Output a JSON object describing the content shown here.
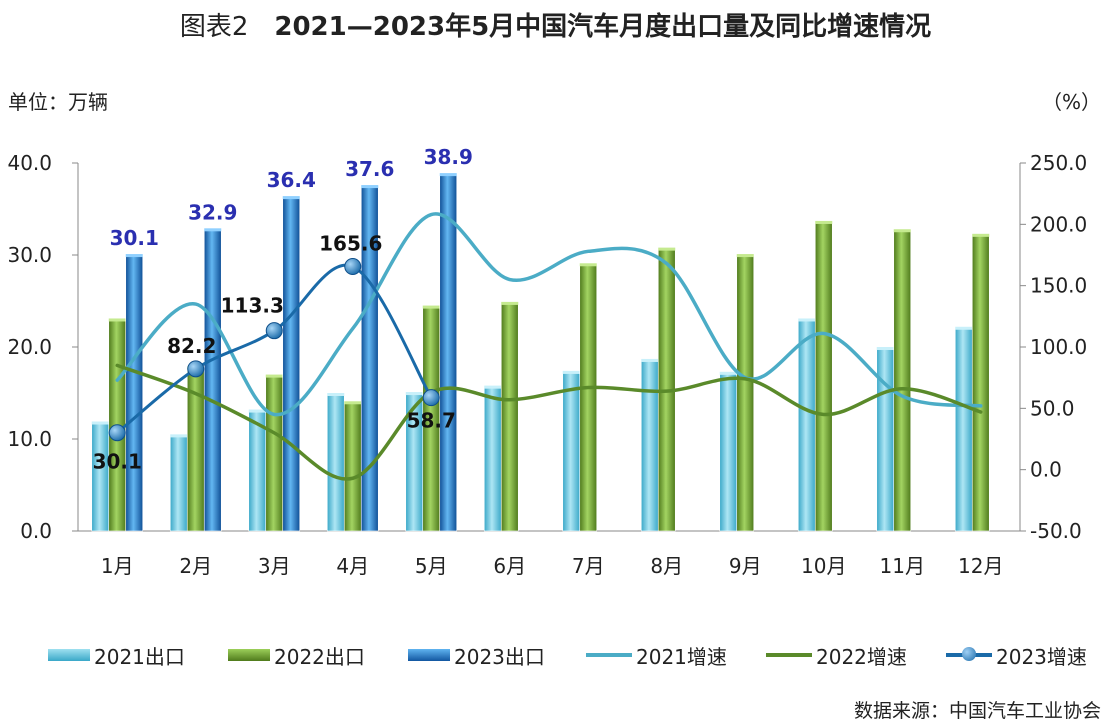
{
  "title_prefix": "图表2",
  "title_main": "2021—2023年5月中国汽车月度出口量及同比增速情况",
  "left_unit": "单位：万辆",
  "right_unit": "（%）",
  "source": "数据来源：中国汽车工业协会",
  "colors": {
    "e2021": "#5bbcd6",
    "e2022": "#6a9a2e",
    "e2023": "#1a6fbf",
    "g2021": "#4bacc6",
    "g2022": "#5a8a2a",
    "g2023": "#1a6aa8"
  },
  "chart_data": {
    "type": "bar",
    "categories": [
      "1月",
      "2月",
      "3月",
      "4月",
      "5月",
      "6月",
      "7月",
      "8月",
      "9月",
      "10月",
      "11月",
      "12月"
    ],
    "y_left": {
      "min": 0,
      "max": 40,
      "ticks": [
        "0.0",
        "10.0",
        "20.0",
        "30.0",
        "40.0"
      ]
    },
    "y_right": {
      "min": -50,
      "max": 250,
      "ticks": [
        "-50.0",
        "0.0",
        "50.0",
        "100.0",
        "150.0",
        "200.0",
        "250.0"
      ]
    },
    "bar_series": [
      {
        "name": "2021出口",
        "axis": "left",
        "values": [
          11.9,
          10.5,
          13.2,
          15.0,
          15.1,
          15.8,
          17.4,
          18.7,
          17.3,
          23.1,
          20.0,
          22.2
        ]
      },
      {
        "name": "2022出口",
        "axis": "left",
        "values": [
          23.1,
          17.9,
          17.0,
          14.1,
          24.5,
          24.9,
          29.1,
          30.8,
          30.1,
          33.7,
          32.8,
          32.3
        ]
      },
      {
        "name": "2023出口",
        "axis": "left",
        "values": [
          30.1,
          32.9,
          36.4,
          37.6,
          38.9
        ],
        "labels": [
          "30.1",
          "32.9",
          "36.4",
          "37.6",
          "38.9"
        ]
      }
    ],
    "line_series": [
      {
        "name": "2021增速",
        "axis": "right",
        "values": [
          73,
          135,
          45,
          115,
          208,
          155,
          178,
          168,
          75,
          111,
          60,
          52
        ]
      },
      {
        "name": "2022增速",
        "axis": "right",
        "values": [
          85,
          62,
          30,
          -7,
          63,
          57,
          67,
          64,
          74,
          45,
          66,
          47
        ]
      },
      {
        "name": "2023增速",
        "axis": "right",
        "values": [
          30.1,
          82.2,
          113.3,
          165.6,
          58.7
        ],
        "labels": [
          "30.1",
          "82.2",
          "113.3",
          "165.6",
          "58.7"
        ]
      }
    ]
  }
}
